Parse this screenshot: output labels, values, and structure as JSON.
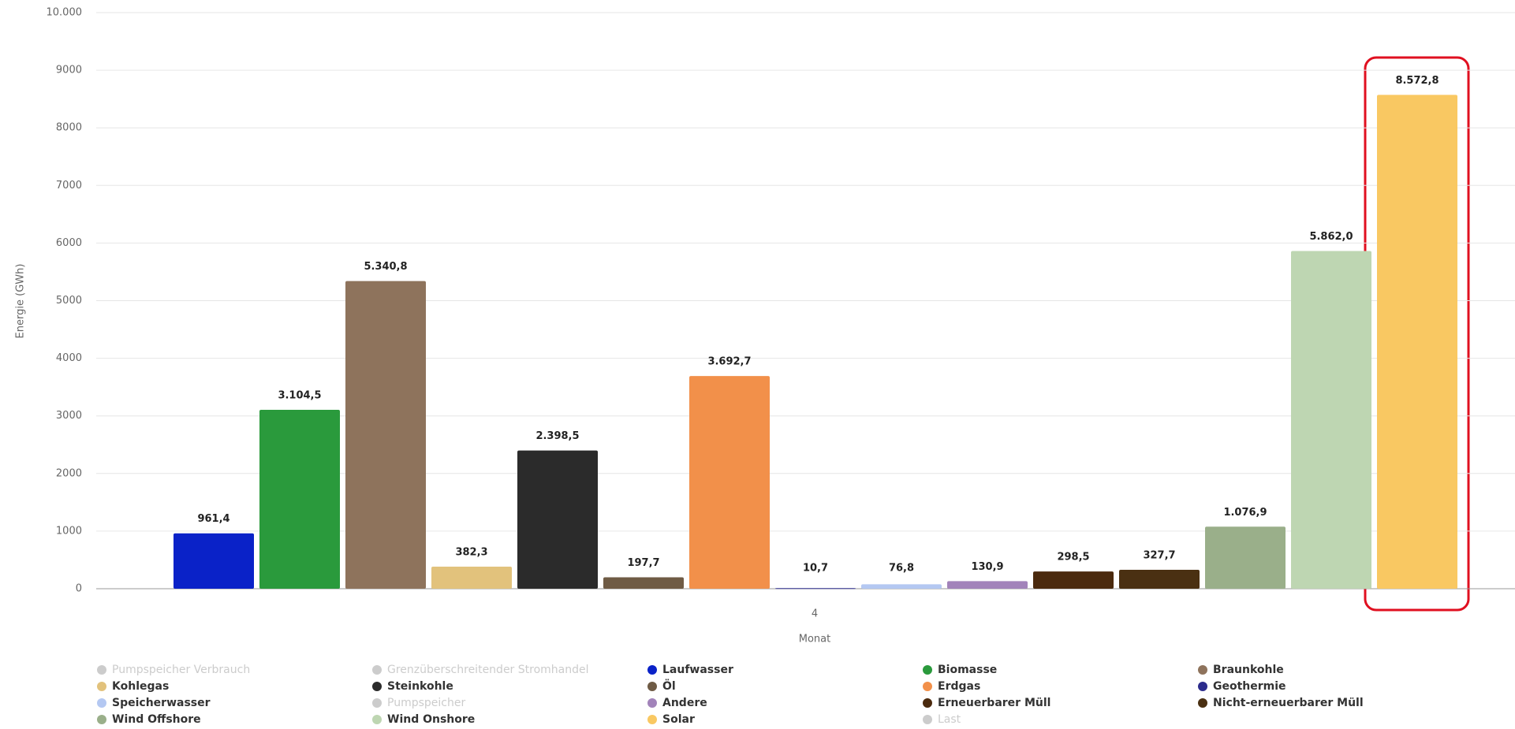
{
  "chart_data": {
    "type": "bar",
    "categories": [
      "4"
    ],
    "x_label": "Monat",
    "y_label": "Energie (GWh)",
    "ylim": [
      0,
      10000
    ],
    "yticks": [
      0,
      1000,
      2000,
      3000,
      4000,
      5000,
      6000,
      7000,
      8000,
      9000,
      {
        "value": 10000,
        "label": "10.000"
      }
    ],
    "grid": true,
    "series": [
      {
        "name": "Pumpspeicher Verbrauch",
        "color": "#cccccc",
        "visible": false,
        "values": [
          null
        ]
      },
      {
        "name": "Grenzüberschreitender Stromhandel",
        "color": "#cccccc",
        "visible": false,
        "values": [
          null
        ]
      },
      {
        "name": "Laufwasser",
        "color": "#0a22c8",
        "values": [
          961.4
        ],
        "value_labels": [
          "961,4"
        ]
      },
      {
        "name": "Biomasse",
        "color": "#2a9a3c",
        "values": [
          3104.5
        ],
        "value_labels": [
          "3.104,5"
        ]
      },
      {
        "name": "Braunkohle",
        "color": "#8e735c",
        "values": [
          5340.8
        ],
        "value_labels": [
          "5.340,8"
        ]
      },
      {
        "name": "Kohlegas",
        "color": "#e2c27c",
        "values": [
          382.3
        ],
        "value_labels": [
          "382,3"
        ]
      },
      {
        "name": "Steinkohle",
        "color": "#2b2b2b",
        "values": [
          2398.5
        ],
        "value_labels": [
          "2.398,5"
        ]
      },
      {
        "name": "Öl",
        "color": "#6f5b45",
        "values": [
          197.7
        ],
        "value_labels": [
          "197,7"
        ]
      },
      {
        "name": "Erdgas",
        "color": "#f2904a",
        "values": [
          3692.7
        ],
        "value_labels": [
          "3.692,7"
        ]
      },
      {
        "name": "Geothermie",
        "color": "#2c2c8c",
        "values": [
          10.7
        ],
        "value_labels": [
          "10,7"
        ]
      },
      {
        "name": "Speicherwasser",
        "color": "#b4c8f2",
        "values": [
          76.8
        ],
        "value_labels": [
          "76,8"
        ]
      },
      {
        "name": "Pumpspeicher",
        "color": "#cccccc",
        "visible": false,
        "values": [
          null
        ]
      },
      {
        "name": "Andere",
        "color": "#a283ba",
        "values": [
          130.9
        ],
        "value_labels": [
          "130,9"
        ]
      },
      {
        "name": "Erneuerbarer Müll",
        "color": "#4b2a0e",
        "values": [
          298.5
        ],
        "value_labels": [
          "298,5"
        ]
      },
      {
        "name": "Nicht-erneuerbarer Müll",
        "color": "#4a3012",
        "values": [
          327.7
        ],
        "value_labels": [
          "327,7"
        ]
      },
      {
        "name": "Wind Offshore",
        "color": "#9aaf8a",
        "values": [
          1076.9
        ],
        "value_labels": [
          "1.076,9"
        ]
      },
      {
        "name": "Wind Onshore",
        "color": "#bed6b2",
        "values": [
          5862.0
        ],
        "value_labels": [
          "5.862,0"
        ]
      },
      {
        "name": "Solar",
        "color": "#f9c862",
        "values": [
          8572.8
        ],
        "value_labels": [
          "8.572,8"
        ]
      },
      {
        "name": "Last",
        "color": "#cccccc",
        "visible": false,
        "values": [
          null
        ]
      }
    ]
  }
}
